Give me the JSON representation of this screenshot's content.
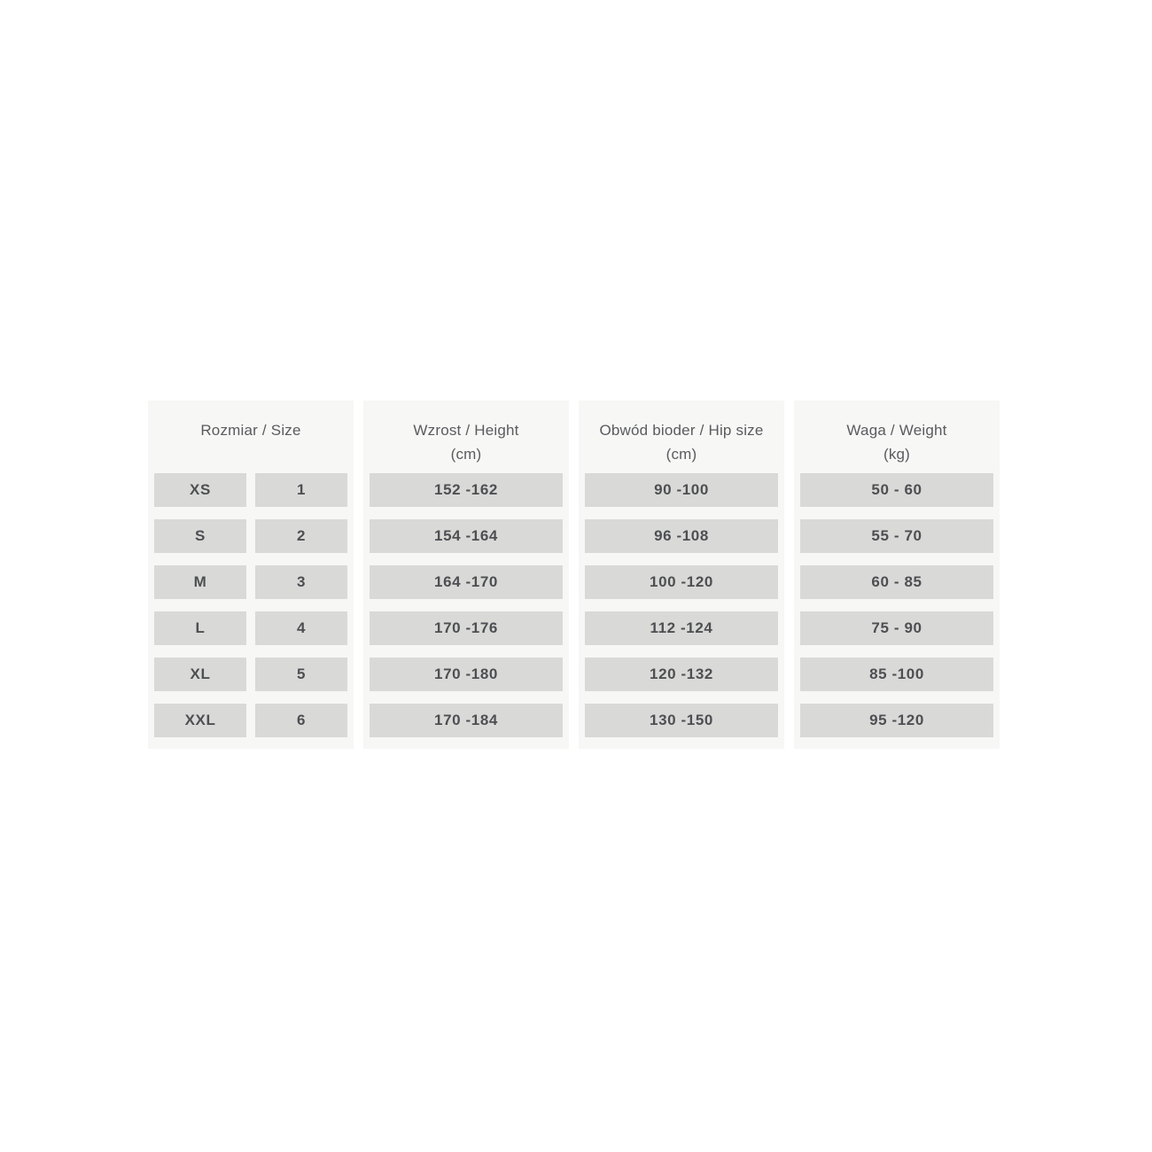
{
  "colors": {
    "page_bg": "#ffffff",
    "panel_bg": "#f7f7f6",
    "cell_bg": "#d9d9d8",
    "header_text": "#5a5b5e",
    "value_text": "#4e4f52"
  },
  "chart_data": {
    "type": "table",
    "title": "",
    "columns": [
      {
        "label": "Rozmiar / Size",
        "unit": ""
      },
      {
        "label": "Wzrost / Height",
        "unit": "(cm)"
      },
      {
        "label": "Obwód bioder  / Hip size",
        "unit": "(cm)"
      },
      {
        "label": "Waga  / Weight",
        "unit": "(kg)"
      }
    ],
    "size_rows": [
      {
        "size": "XS",
        "number": "1"
      },
      {
        "size": "S",
        "number": "2"
      },
      {
        "size": "M",
        "number": "3"
      },
      {
        "size": "L",
        "number": "4"
      },
      {
        "size": "XL",
        "number": "5"
      },
      {
        "size": "XXL",
        "number": "6"
      }
    ],
    "height_values": [
      "152 -162",
      "154 -164",
      "164 -170",
      "170 -176",
      "170 -180",
      "170 -184"
    ],
    "hip_values": [
      "90 -100",
      "96 -108",
      "100 -120",
      "112 -124",
      "120 -132",
      "130 -150"
    ],
    "weight_values": [
      "50 - 60",
      "55 - 70",
      "60 - 85",
      "75 - 90",
      "85 -100",
      "95 -120"
    ]
  }
}
